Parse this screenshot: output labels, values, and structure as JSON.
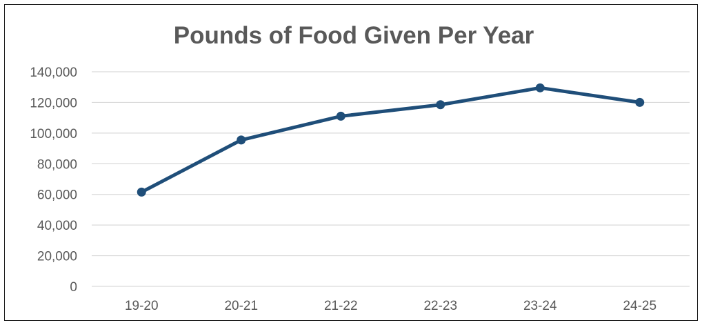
{
  "chart_data": {
    "type": "line",
    "title": "Pounds of Food Given Per Year",
    "xlabel": "",
    "ylabel": "",
    "categories": [
      "19-20",
      "20-21",
      "21-22",
      "22-23",
      "23-24",
      "24-25"
    ],
    "series": [
      {
        "values": [
          61500,
          95500,
          111000,
          118500,
          129500,
          120000
        ]
      }
    ],
    "ylim": [
      0,
      140000
    ],
    "yticks": [
      0,
      20000,
      40000,
      60000,
      80000,
      100000,
      120000,
      140000
    ],
    "ytick_labels": [
      "0",
      "20,000",
      "40,000",
      "60,000",
      "80,000",
      "100,000",
      "120,000",
      "140,000"
    ],
    "grid": true,
    "legend": "none",
    "line_color": "#1f4e79",
    "marker": "circle"
  }
}
